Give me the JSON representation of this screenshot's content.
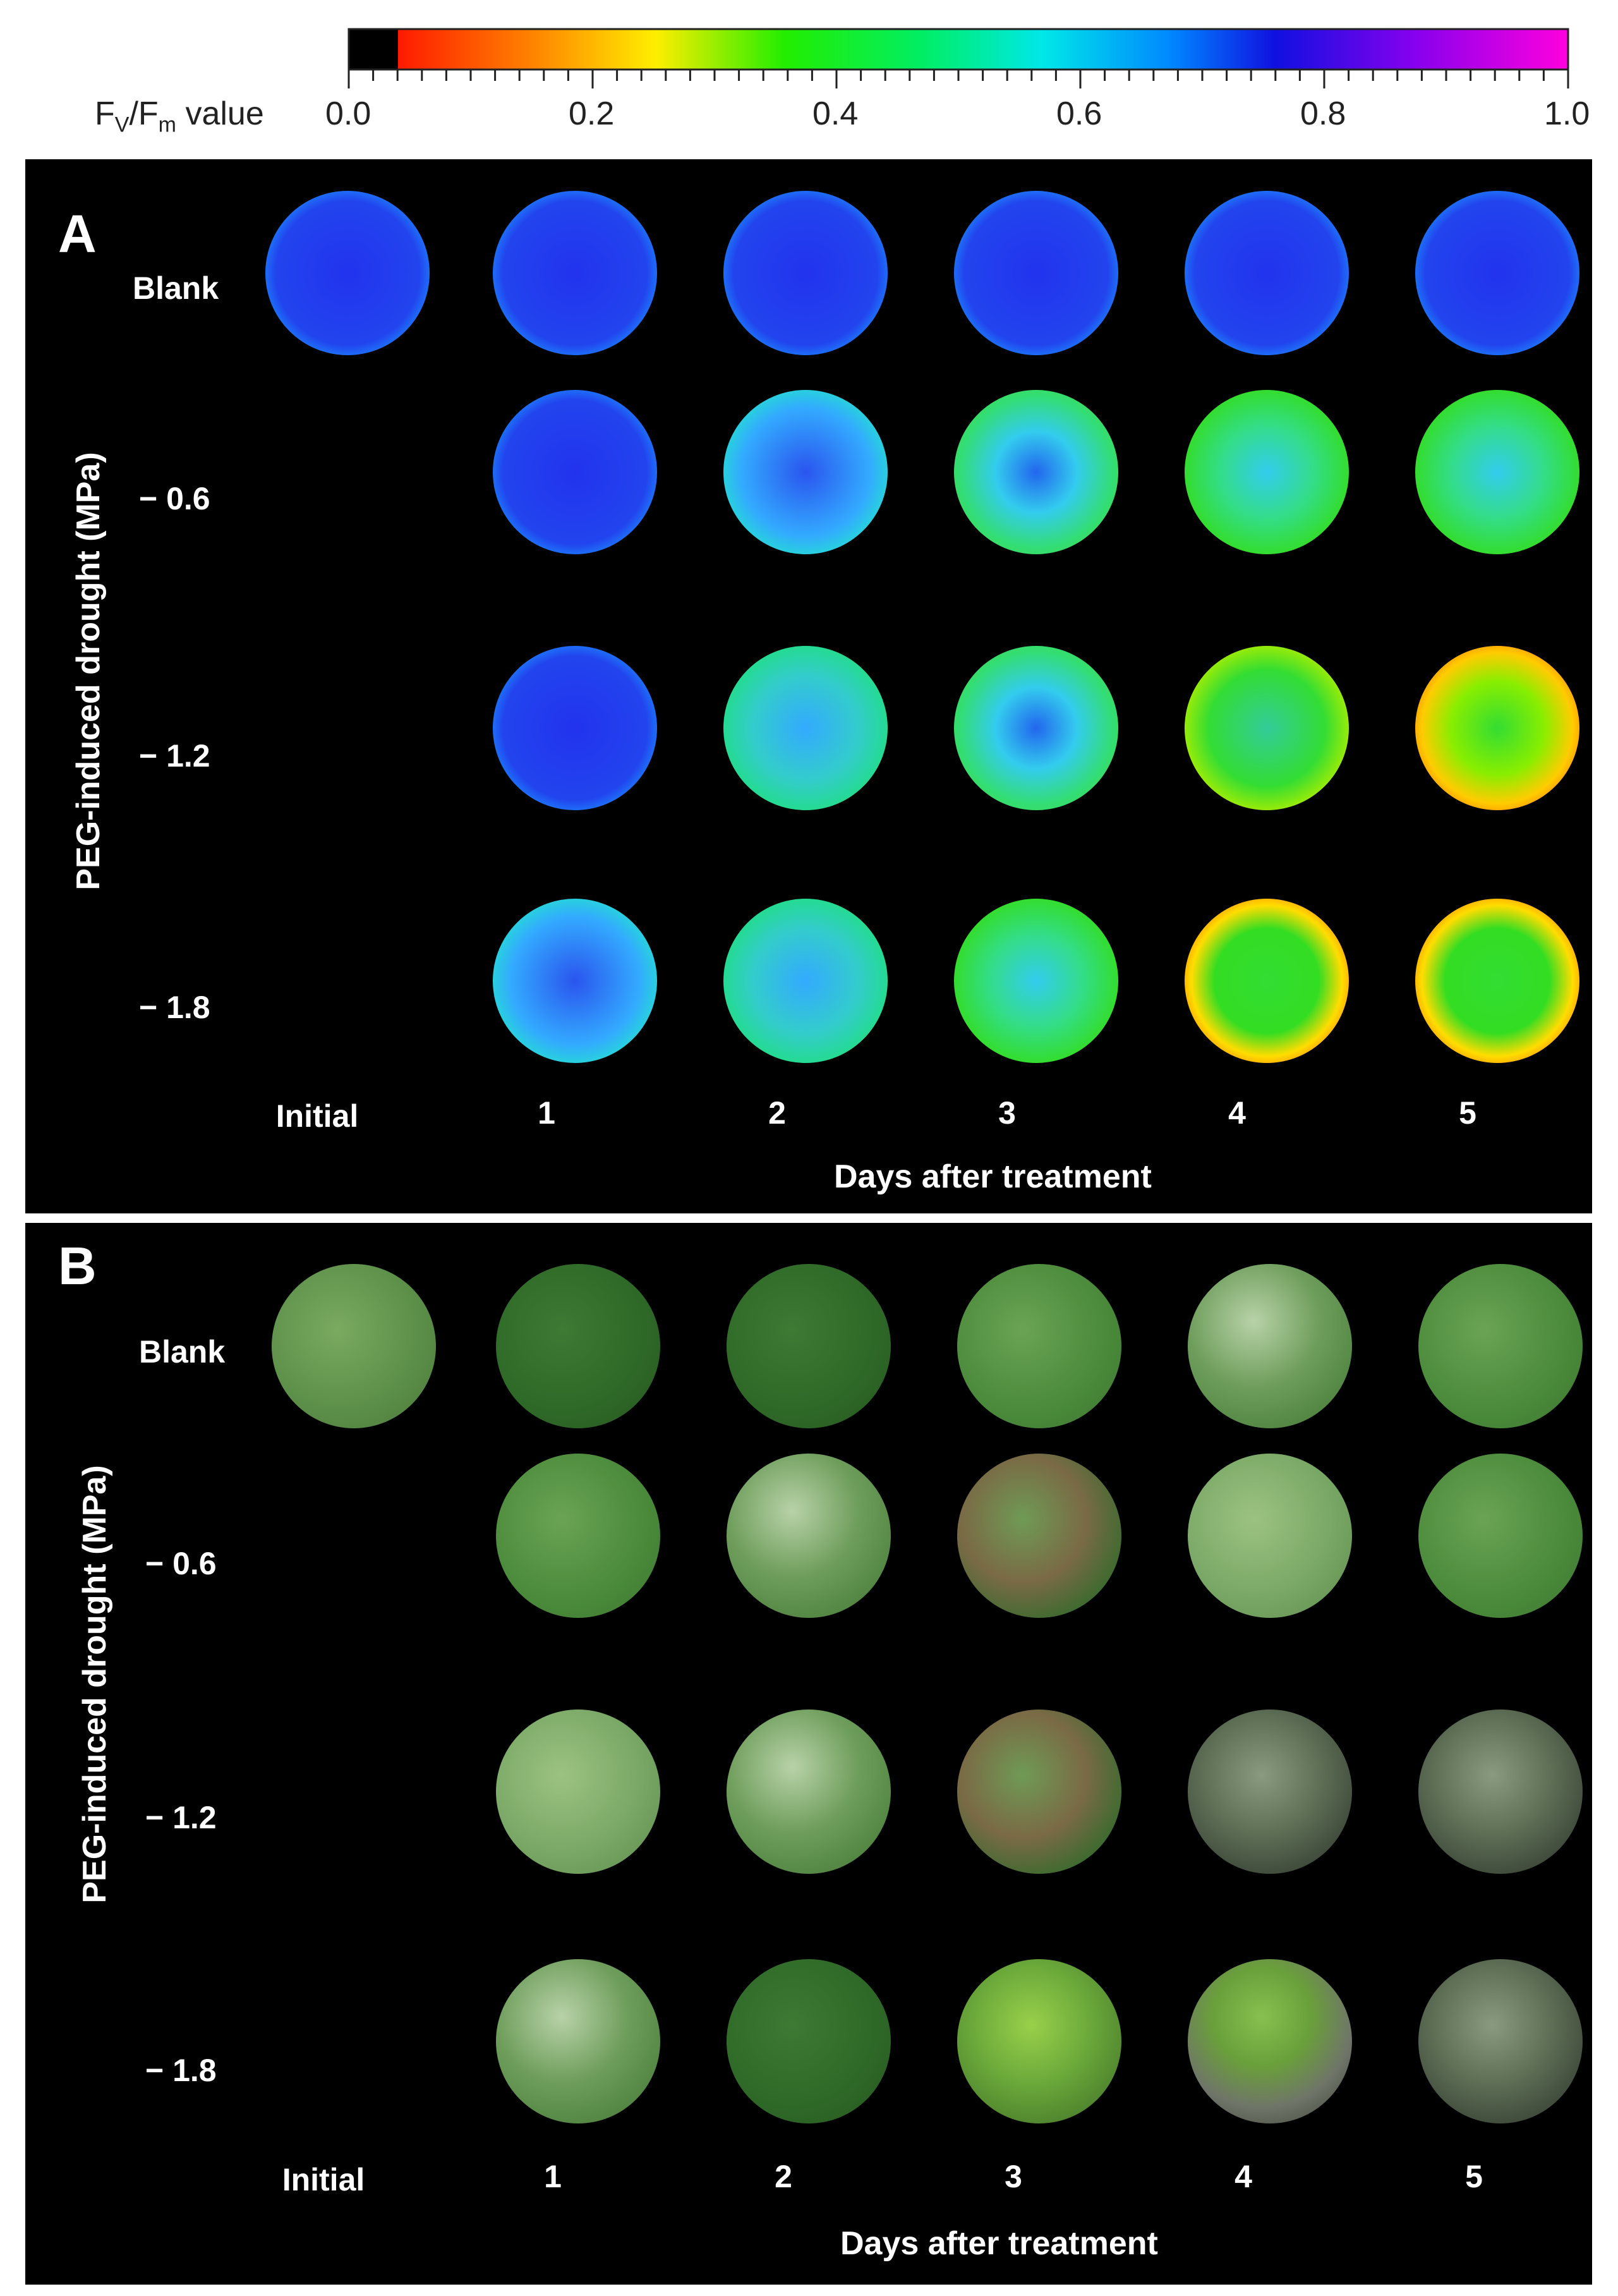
{
  "colorbar": {
    "title_parts": {
      "main1": "F",
      "sub1": "V",
      "slash": "/F",
      "sub2": "m",
      "tail": " value"
    },
    "tick_labels": [
      "0.0",
      "0.2",
      "0.4",
      "0.6",
      "0.8",
      "1.0"
    ],
    "scale_colors": [
      "#000000",
      "#ff0000",
      "#ff9900",
      "#ffff00",
      "#00ff00",
      "#00ffff",
      "#0000ff",
      "#9900ff",
      "#ff00ff"
    ]
  },
  "panel_a": {
    "letter": "A",
    "y_axis_title": "PEG-induced drought (MPa)",
    "x_axis_title": "Days after treatment",
    "row_labels": [
      "Blank",
      "− 0.6",
      "− 1.2",
      "− 1.8"
    ],
    "col_labels": [
      "Initial",
      "1",
      "2",
      "3",
      "4",
      "5"
    ]
  },
  "panel_b": {
    "letter": "B",
    "y_axis_title": "PEG-induced drought (MPa)",
    "x_axis_title": "Days after treatment",
    "row_labels": [
      "Blank",
      "− 0.6",
      "− 1.2",
      "− 1.8"
    ],
    "col_labels": [
      "Initial",
      "1",
      "2",
      "3",
      "4",
      "5"
    ]
  }
}
